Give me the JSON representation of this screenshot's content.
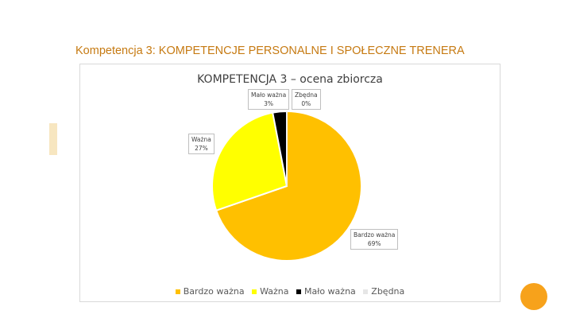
{
  "slide": {
    "title": "Kompetencja 3: KOMPETENCJE PERSONALNE I SPOŁECZNE TRENERA"
  },
  "chart_data": {
    "type": "pie",
    "title": "KOMPETENCJA 3 – ocena zbiorcza",
    "legend_position": "bottom",
    "categories": [
      "Bardzo ważna",
      "Ważna",
      "Mało ważna",
      "Zbędna"
    ],
    "values": [
      69,
      27,
      3,
      0
    ],
    "data_labels": [
      {
        "name": "Bardzo ważna",
        "pct": "69%"
      },
      {
        "name": "Ważna",
        "pct": "27%"
      },
      {
        "name": "Mało ważna",
        "pct": "3%"
      },
      {
        "name": "Zbędna",
        "pct": "0%"
      }
    ],
    "colors": [
      "#ffc000",
      "#ffff00",
      "#000000",
      "#e6e6e6"
    ]
  }
}
